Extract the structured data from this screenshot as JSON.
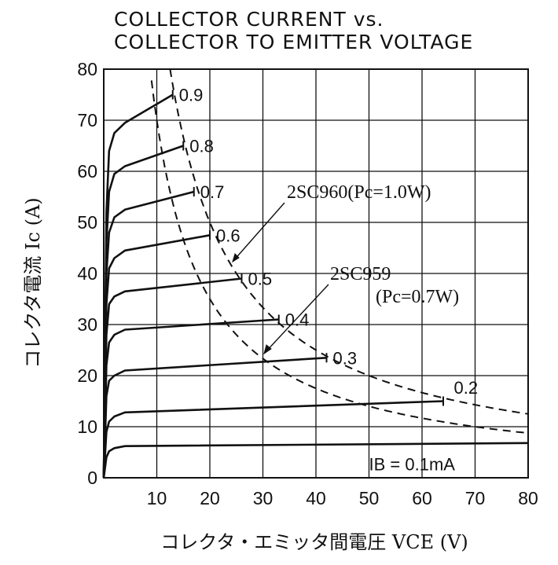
{
  "chart_data": {
    "type": "line",
    "title_lines": [
      "COLLECTOR CURRENT vs.",
      "COLLECTOR TO EMITTER VOLTAGE"
    ],
    "xlabel": "コレクタ・エミッタ間電圧 VCE (V)",
    "ylabel": "コレクタ電流 Ic (A)",
    "xlim": [
      0,
      80
    ],
    "ylim": [
      0,
      80
    ],
    "x_ticks": [
      "10",
      "20",
      "30",
      "40",
      "50",
      "60",
      "70",
      "80"
    ],
    "y_ticks": [
      "0",
      "10",
      "20",
      "30",
      "40",
      "50",
      "60",
      "70",
      "80"
    ],
    "grid": true,
    "series": [
      {
        "name": "IB=0.1mA",
        "label": "IB = 0.1mA",
        "x": [
          0,
          0.5,
          1,
          2,
          4,
          80
        ],
        "y": [
          0,
          4,
          5.2,
          5.8,
          6.2,
          6.8
        ]
      },
      {
        "name": "0.2",
        "label": "0.2",
        "x": [
          0,
          0.5,
          1,
          2,
          4,
          64
        ],
        "y": [
          0,
          9,
          11,
          12,
          12.8,
          15
        ]
      },
      {
        "name": "0.3",
        "label": "0.3",
        "x": [
          0,
          0.5,
          1,
          2,
          4,
          42
        ],
        "y": [
          0,
          16,
          19,
          20,
          21,
          23.5
        ]
      },
      {
        "name": "0.4",
        "label": "0.4",
        "x": [
          0,
          0.5,
          1,
          2,
          4,
          33
        ],
        "y": [
          0,
          22,
          26.5,
          28,
          29,
          31
        ]
      },
      {
        "name": "0.5",
        "label": "0.5",
        "x": [
          0,
          0.5,
          1,
          2,
          4,
          26
        ],
        "y": [
          0,
          28,
          34,
          35.5,
          36.5,
          39
        ]
      },
      {
        "name": "0.6",
        "label": "0.6",
        "x": [
          0,
          0.5,
          1,
          2,
          4,
          20
        ],
        "y": [
          0,
          34,
          41,
          43,
          44.5,
          47.5
        ]
      },
      {
        "name": "0.7",
        "label": "0.7",
        "x": [
          0,
          0.5,
          1,
          2,
          4,
          17
        ],
        "y": [
          0,
          40,
          48,
          51,
          52.5,
          56
        ]
      },
      {
        "name": "0.8",
        "label": "0.8",
        "x": [
          0,
          0.5,
          1,
          2,
          4,
          15
        ],
        "y": [
          0,
          46,
          56,
          59.5,
          61,
          65
        ]
      },
      {
        "name": "0.9",
        "label": "0.9",
        "x": [
          0,
          0.5,
          1,
          2,
          4,
          13
        ],
        "y": [
          0,
          52,
          64,
          67.5,
          69.5,
          75
        ]
      }
    ],
    "power_curves": [
      {
        "name": "2SC960",
        "label": "2SC960(Pc=1.0W)",
        "pc_w": 1.0,
        "style": "dashed"
      },
      {
        "name": "2SC959",
        "label": "(Pc=0.7W)",
        "pc_w": 0.7,
        "style": "dashed"
      }
    ],
    "annotation_2sc959": "2SC959"
  },
  "colors": {
    "ink": "#111111",
    "background": "#ffffff"
  }
}
